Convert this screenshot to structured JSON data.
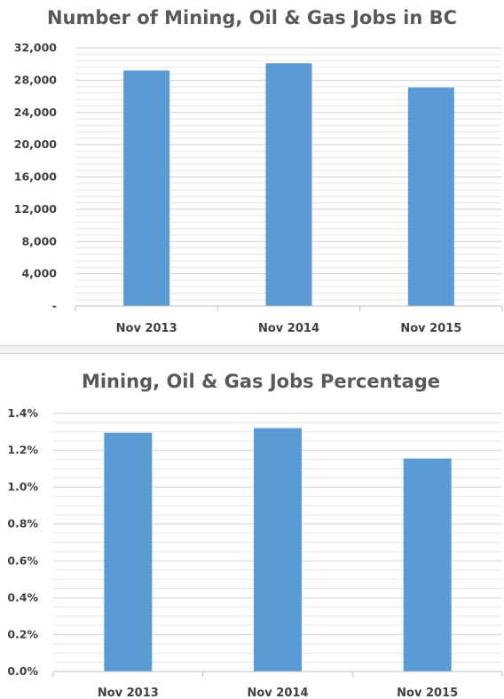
{
  "chart_data": [
    {
      "type": "bar",
      "title": "Number of Mining, Oil & Gas Jobs in BC",
      "categories": [
        "Nov 2013",
        "Nov 2014",
        "Nov 2015"
      ],
      "values": [
        29200,
        30100,
        27100
      ],
      "ylim": [
        0,
        32000
      ],
      "yticks": [
        0,
        4000,
        8000,
        12000,
        16000,
        20000,
        24000,
        28000,
        32000
      ],
      "ytick_labels": [
        "-",
        "4,000",
        "8,000",
        "12,000",
        "16,000",
        "20,000",
        "24,000",
        "28,000",
        "32,000"
      ],
      "minor_step": 800,
      "grid": true,
      "bar_color": "#5b9bd5"
    },
    {
      "type": "bar",
      "title": "Mining, Oil & Gas Jobs Percentage",
      "categories": [
        "Nov 2013",
        "Nov 2014",
        "Nov 2015"
      ],
      "values": [
        1.295,
        1.32,
        1.155
      ],
      "ylim": [
        0,
        1.4
      ],
      "yticks": [
        0,
        0.2,
        0.4,
        0.6,
        0.8,
        1.0,
        1.2,
        1.4
      ],
      "ytick_labels": [
        "0.0%",
        "0.2%",
        "0.4%",
        "0.6%",
        "0.8%",
        "1.0%",
        "1.2%",
        "1.4%"
      ],
      "minor_step": 0.05,
      "grid": true,
      "bar_color": "#5b9bd5"
    }
  ]
}
